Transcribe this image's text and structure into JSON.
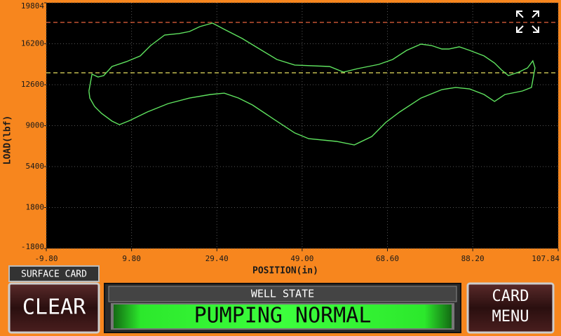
{
  "chart_data": {
    "type": "line",
    "y_label": "LOAD(lbf)",
    "x_label": "POSITION(in)",
    "xlim": [
      -9.8,
      107.84
    ],
    "xticks": [
      {
        "value": -9.8,
        "label": "-9.80"
      },
      {
        "value": 9.8,
        "label": "9.80"
      },
      {
        "value": 29.4,
        "label": "29.40"
      },
      {
        "value": 49,
        "label": "49.00"
      },
      {
        "value": 68.6,
        "label": "68.60"
      },
      {
        "value": 88.2,
        "label": "88.20"
      },
      107.84
    ],
    "ylim": [
      -1800,
      19804
    ],
    "yticks": [
      -1800,
      1800,
      5400,
      9000,
      12600,
      16200,
      19804
    ],
    "grid": true,
    "reference_lines": [
      {
        "value": 18080,
        "color": "#e8643c"
      },
      {
        "value": 13650,
        "color": "#e8e060"
      }
    ],
    "x": [
      0.0,
      0.7,
      2.1,
      3.4,
      5.3,
      8.6,
      11.8,
      14.2,
      17.4,
      20.7,
      23.1,
      25.5,
      28.4,
      31.1,
      35.2,
      39.2,
      43.2,
      47.3,
      55.3,
      58.5,
      61.8,
      66.6,
      69.8,
      73.0,
      76.3,
      78.7,
      81.1,
      82.7,
      85.1,
      87.5,
      90.8,
      93.2,
      94.8,
      96.4,
      98.8,
      100.8,
      102.0,
      102.5,
      101.7,
      99.6,
      95.6,
      93.2,
      90.8,
      87.5,
      84.3,
      81.1,
      76.3,
      71.4,
      68.2,
      65.0,
      61.0,
      56.9,
      50.5,
      47.3,
      42.4,
      37.6,
      34.4,
      31.1,
      27.9,
      23.1,
      18.2,
      13.4,
      9.4,
      7.0,
      5.3,
      2.9,
      1.3,
      0.2,
      0.0
    ],
    "series": [
      {
        "color": "#5fe35f",
        "values": [
          12050,
          13530,
          13280,
          13400,
          14200,
          14630,
          15130,
          16050,
          16970,
          17100,
          17280,
          17710,
          18020,
          17470,
          16670,
          15740,
          14820,
          14330,
          14200,
          13710,
          14020,
          14390,
          14820,
          15620,
          16170,
          16050,
          15740,
          15740,
          15930,
          15620,
          15130,
          14510,
          13900,
          13400,
          13710,
          14080,
          14700,
          14080,
          12360,
          12050,
          11740,
          11130,
          11740,
          12230,
          12360,
          12170,
          11430,
          10200,
          9280,
          8050,
          7310,
          7620,
          7860,
          8360,
          9590,
          10820,
          11430,
          11860,
          11740,
          11430,
          10940,
          10200,
          9460,
          9090,
          9400,
          10080,
          10690,
          11430,
          12050
        ]
      }
    ]
  },
  "card_label": "SURFACE CARD",
  "clear_button": "CLEAR",
  "well_state": {
    "title": "WELL STATE",
    "status": "PUMPING NORMAL"
  },
  "card_menu_button": [
    "CARD",
    "MENU"
  ]
}
